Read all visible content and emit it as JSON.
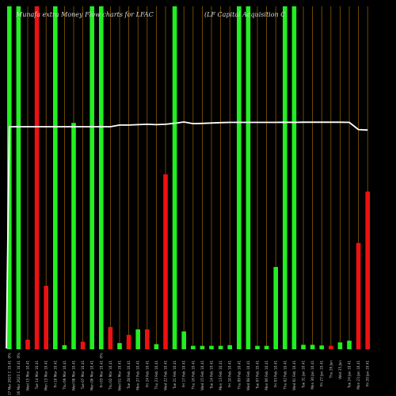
{
  "chart_data": {
    "type": "bar",
    "title_left": "Munafa extra  Money Flow  charts for LFAC",
    "title_right": "(LF Capital Acquisition  C",
    "ylim": [
      0,
      100
    ],
    "colors": {
      "up": "#22ee22",
      "down": "#ee1111",
      "line": "#ffffff",
      "grid": "#8a5a00",
      "bg": "#000000"
    },
    "bars": [
      {
        "c": "up",
        "v": 100,
        "p": "0%"
      },
      {
        "c": "up",
        "v": 100,
        "p": "0%"
      },
      {
        "c": "down",
        "v": 2.8,
        "p": ""
      },
      {
        "c": "down",
        "v": 100,
        "p": ""
      },
      {
        "c": "down",
        "v": 18.5,
        "p": ""
      },
      {
        "c": "up",
        "v": 100,
        "p": ""
      },
      {
        "c": "up",
        "v": 1.2,
        "p": ""
      },
      {
        "c": "up",
        "v": 66,
        "p": ""
      },
      {
        "c": "down",
        "v": 2.2,
        "p": ""
      },
      {
        "c": "up",
        "v": 100,
        "p": ""
      },
      {
        "c": "up",
        "v": 100,
        "p": "0%"
      },
      {
        "c": "down",
        "v": 6.5,
        "p": ""
      },
      {
        "c": "up",
        "v": 1.8,
        "p": ""
      },
      {
        "c": "down",
        "v": 4.2,
        "p": ""
      },
      {
        "c": "up",
        "v": 5.8,
        "p": ""
      },
      {
        "c": "down",
        "v": 5.8,
        "p": ""
      },
      {
        "c": "up",
        "v": 1.5,
        "p": ""
      },
      {
        "c": "down",
        "v": 51,
        "p": ""
      },
      {
        "c": "up",
        "v": 100,
        "p": ""
      },
      {
        "c": "up",
        "v": 5.2,
        "p": ""
      },
      {
        "c": "up",
        "v": 1.0,
        "p": ""
      },
      {
        "c": "up",
        "v": 1.0,
        "p": ""
      },
      {
        "c": "up",
        "v": 1.0,
        "p": ""
      },
      {
        "c": "up",
        "v": 1.0,
        "p": ""
      },
      {
        "c": "up",
        "v": 1.2,
        "p": ""
      },
      {
        "c": "up",
        "v": 100,
        "p": ""
      },
      {
        "c": "up",
        "v": 100,
        "p": ""
      },
      {
        "c": "up",
        "v": 1.0,
        "p": ""
      },
      {
        "c": "up",
        "v": 1.0,
        "p": ""
      },
      {
        "c": "up",
        "v": 24,
        "p": ""
      },
      {
        "c": "up",
        "v": 100,
        "p": ""
      },
      {
        "c": "up",
        "v": 100,
        "p": ""
      },
      {
        "c": "up",
        "v": 1.3,
        "p": ""
      },
      {
        "c": "up",
        "v": 1.3,
        "p": ""
      },
      {
        "c": "up",
        "v": 1.1,
        "p": ""
      },
      {
        "c": "down",
        "v": 1.0,
        "p": ""
      },
      {
        "c": "up",
        "v": 2.0,
        "p": ""
      },
      {
        "c": "up",
        "v": 2.5,
        "p": ""
      },
      {
        "c": "down",
        "v": 31,
        "p": ""
      },
      {
        "c": "down",
        "v": 46,
        "p": ""
      }
    ],
    "line_values": [
      100,
      100,
      100,
      100,
      100,
      100,
      100,
      100,
      100,
      100,
      100,
      100,
      100.8,
      100.8,
      101.0,
      101.2,
      101.0,
      101.2,
      101.7,
      102.3,
      101.5,
      101.6,
      101.8,
      102.0,
      102.1,
      102.1,
      102.1,
      102.1,
      102.1,
      102.1,
      102.2,
      102.1,
      102.2,
      102.2,
      102.2,
      102.2,
      102.2,
      102.1,
      98.6,
      98.4
    ],
    "line_start": 0,
    "x_tick_labels": [
      "Fri 17 Mar 2023 C 10.41",
      "Thu 16 Mar 2023 C 10.41",
      "Wed 15 Mar 10.41",
      "Tue 14 Mar 10.41",
      "Mon 13 Mar 10.41",
      "Fri 10 Mar 10.41",
      "Thu 09 Mar 10.41",
      "Wed 08 Mar 10.41",
      "Tue 07 Mar 10.41",
      "Mon 06 Mar 10.41",
      "Fri 03 Mar 10.41",
      "Thu 02 Mar 10.41",
      "Wed 01 Mar 10.41",
      "Tue 28 Feb 10.41",
      "Mon 27 Feb 10.41",
      "Fri 24 Feb 10.41",
      "Thu 23 Feb 10.41",
      "Wed 22 Feb 10.41",
      "Tue 21 Feb 10.41",
      "Fri 17 Feb 10.41",
      "Thu 16 Feb 10.41",
      "Wed 15 Feb 10.41",
      "Tue 14 Feb 10.41",
      "Mon 13 Feb 10.41",
      "Fri 10 Feb 10.41",
      "Thu 09 Feb 10.41",
      "Wed 08 Feb 10.41",
      "Tue 07 Feb 10.41",
      "Mon 06 Feb 10.41",
      "Fri 03 Feb 10.41",
      "Thu 02 Feb 10.41",
      "Wed 01 Feb 10.41",
      "Tue 31 Jan 10.41",
      "Mon 30 Jan 10.41",
      "Fri 27 Jan 10.41",
      "Thu 26 Jan",
      "Wed 25 Jan",
      "Tue 24 Jan 10.41",
      "Mon 23 Jan 10.41",
      "Fri 20 Jan 10.41"
    ]
  }
}
